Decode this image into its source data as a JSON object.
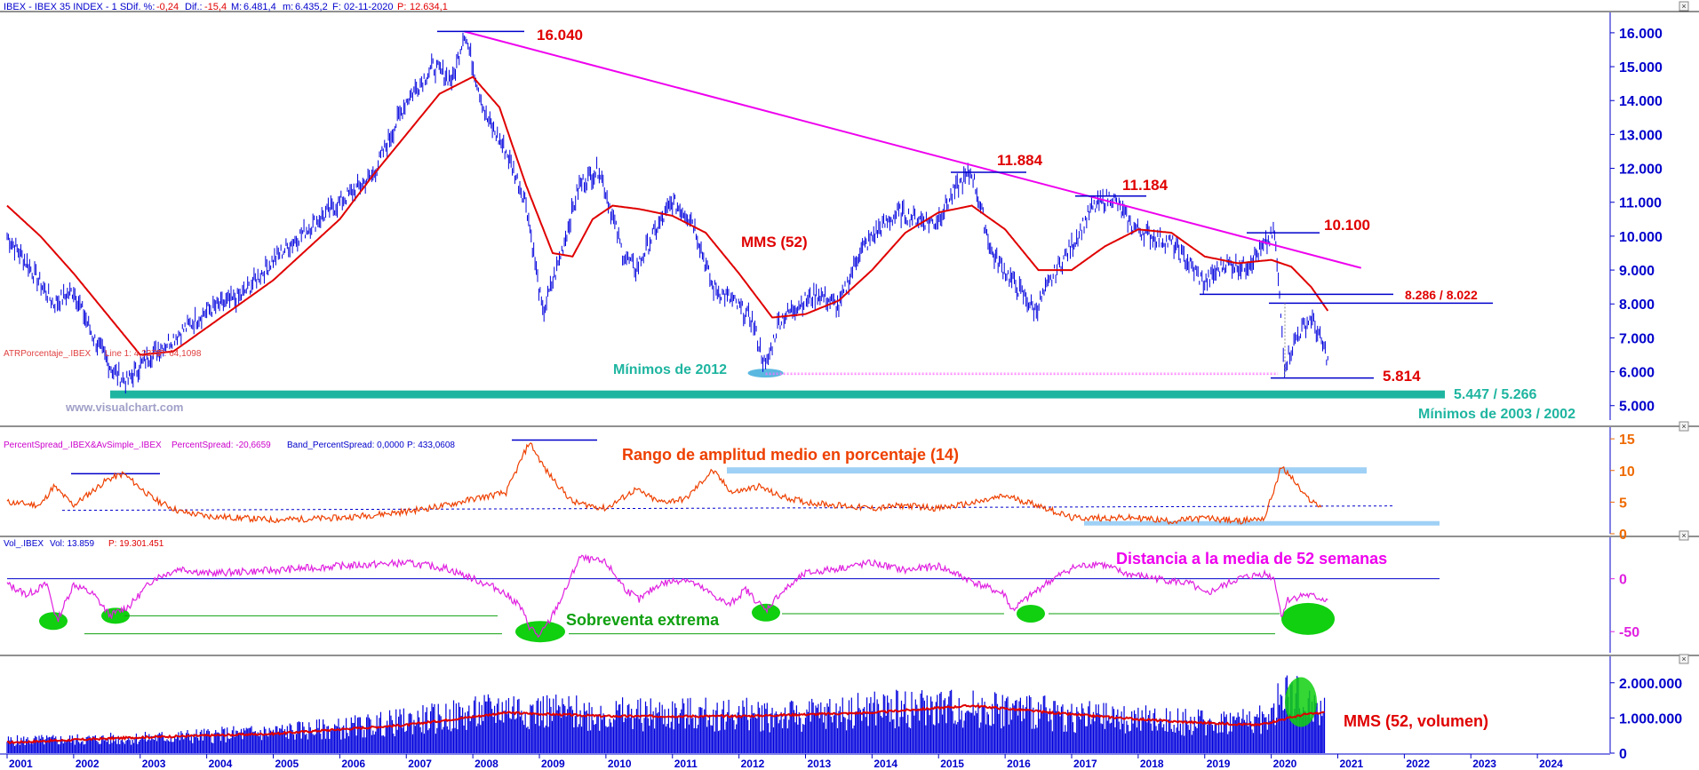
{
  "colors": {
    "price": "#0000dd",
    "mma": "#e00000",
    "trendline": "#ee00ee",
    "support": "#1eb5a0",
    "atr": "#ee4000",
    "atr_band": "#9fd0f5",
    "spread": "#e020e0",
    "oversold": "#10d010",
    "volume": "#0000dd",
    "axis_text": "#0000cc",
    "watermark": "#a0a0c8"
  },
  "headers": {
    "price": {
      "prefix": "IBEX - IBEX 35 INDEX - 1 S",
      "dif_pct_label": "Dif. %:",
      "dif_pct": "-0,24",
      "dif_label": "Dif.:",
      "dif": "-15,4",
      "max_label": "M:",
      "max": "6.481,4",
      "min_label": "m:",
      "min": "6.435,2",
      "date_label": "F:",
      "date": "02-11-2020",
      "p_label": "P:",
      "p": "12.634,1"
    },
    "atr": {
      "name": "ATRPorcentaje_.IBEX",
      "line": "Line 1: 4,2375",
      "p": "P: 64,1098"
    },
    "spread": {
      "name": "PercentSpread_.IBEX&AvSimple_.IBEX",
      "value": "PercentSpread: -20,6659",
      "band": "Band_PercentSpread: 0,0000",
      "p": "P: 433,0608"
    },
    "volume": {
      "name": "Vol_.IBEX",
      "vol": "Vol: 13.859",
      "p": "P: 19.301.451"
    }
  },
  "annotations": {
    "high_2007": "16.040",
    "high_2015": "11.884",
    "high_2017": "11.184",
    "high_2020": "10.100",
    "gap_2020": "8.286 / 8.022",
    "low_2020": "5.814",
    "low_2003": "5.447 / 5.266",
    "mins_2003": "Mínimos de 2003 / 2002",
    "mins_2012": "Mínimos de 2012",
    "mma_label": "MMS (52)",
    "watermark": "www.visualchart.com",
    "atr_title": "Rango de amplitud medio en porcentaje (14)",
    "spread_title": "Distancia a la media de 52 semanas",
    "oversold": "Sobreventa extrema",
    "vol_mma": "MMS (52, volumen)"
  },
  "chart_data": [
    {
      "type": "line",
      "title": "IBEX - IBEX 35 INDEX - 1 S",
      "x_unit": "year",
      "xlim": [
        2001,
        2025
      ],
      "ylim": [
        4600,
        16600
      ],
      "yticks": [
        5000,
        6000,
        7000,
        8000,
        9000,
        10000,
        11000,
        12000,
        13000,
        14000,
        15000,
        16000
      ],
      "ytick_labels": [
        "5.000",
        "6.000",
        "7.000",
        "8.000",
        "9.000",
        "10.000",
        "11.000",
        "12.000",
        "13.000",
        "14.000",
        "15.000",
        "16.000"
      ],
      "xtick_labels": [
        "2001",
        "2002",
        "2003",
        "2004",
        "2005",
        "2006",
        "2007",
        "2008",
        "2009",
        "2010",
        "2011",
        "2012",
        "2013",
        "2014",
        "2015",
        "2016",
        "2017",
        "2018",
        "2019",
        "2020",
        "2021",
        "2022",
        "2023",
        "2024"
      ],
      "series": [
        {
          "name": "IBEX",
          "x": [
            2001.0,
            2001.3,
            2001.7,
            2002.0,
            2002.3,
            2002.6,
            2002.8,
            2003.1,
            2003.5,
            2004.0,
            2004.5,
            2005.0,
            2005.5,
            2006.0,
            2006.5,
            2007.0,
            2007.4,
            2007.7,
            2007.87,
            2008.2,
            2008.5,
            2008.8,
            2009.05,
            2009.3,
            2009.6,
            2009.9,
            2010.25,
            2010.45,
            2010.7,
            2011.0,
            2011.3,
            2011.6,
            2011.9,
            2012.2,
            2012.4,
            2012.6,
            2012.9,
            2013.2,
            2013.5,
            2013.8,
            2014.1,
            2014.4,
            2014.7,
            2014.95,
            2015.3,
            2015.5,
            2015.8,
            2016.1,
            2016.45,
            2016.8,
            2017.0,
            2017.3,
            2017.6,
            2017.9,
            2018.2,
            2018.5,
            2018.8,
            2019.0,
            2019.3,
            2019.6,
            2019.9,
            2020.05,
            2020.2,
            2020.4,
            2020.6,
            2020.85
          ],
          "values": [
            10000,
            9200,
            8000,
            8400,
            7000,
            6000,
            5700,
            6400,
            7000,
            7800,
            8200,
            9300,
            10200,
            11000,
            11800,
            14000,
            15000,
            14600,
            16040,
            13500,
            12500,
            11000,
            7700,
            9300,
            11500,
            12000,
            9500,
            9000,
            10000,
            11000,
            10500,
            8500,
            8100,
            7500,
            6100,
            7500,
            8000,
            8300,
            7900,
            9500,
            10200,
            10700,
            10500,
            10400,
            11500,
            11884,
            9500,
            8700,
            7800,
            9100,
            9700,
            10800,
            11184,
            10300,
            10000,
            9800,
            9100,
            8600,
            9200,
            9100,
            9700,
            10100,
            6200,
            7100,
            7600,
            6400
          ]
        },
        {
          "name": "MMS (52)",
          "x": [
            2001.0,
            2001.5,
            2002.0,
            2002.5,
            2003.0,
            2003.5,
            2004.0,
            2004.5,
            2005.0,
            2005.5,
            2006.0,
            2006.5,
            2007.0,
            2007.5,
            2008.0,
            2008.4,
            2008.8,
            2009.2,
            2009.5,
            2009.8,
            2010.1,
            2010.5,
            2011.0,
            2011.5,
            2012.0,
            2012.5,
            2013.0,
            2013.5,
            2014.0,
            2014.5,
            2015.0,
            2015.5,
            2016.0,
            2016.5,
            2017.0,
            2017.5,
            2018.0,
            2018.5,
            2019.0,
            2019.5,
            2020.0,
            2020.3,
            2020.6,
            2020.85
          ],
          "values": [
            10900,
            10000,
            8900,
            7700,
            6500,
            6600,
            7300,
            8000,
            8700,
            9600,
            10500,
            11800,
            13000,
            14200,
            14700,
            13800,
            11500,
            9500,
            9400,
            10500,
            10900,
            10800,
            10600,
            10100,
            8900,
            7600,
            7700,
            8100,
            9000,
            10100,
            10700,
            10900,
            10200,
            9000,
            9000,
            9700,
            10200,
            10100,
            9400,
            9200,
            9300,
            9100,
            8500,
            7800
          ]
        }
      ],
      "levels": [
        {
          "label": "16.040",
          "value": 16040
        },
        {
          "label": "11.884",
          "value": 11884
        },
        {
          "label": "11.184",
          "value": 11184
        },
        {
          "label": "10.100",
          "value": 10100
        },
        {
          "label": "8.286 / 8.022",
          "values": [
            8286,
            8022
          ]
        },
        {
          "label": "5.814",
          "value": 5814
        },
        {
          "label": "5.447 / 5.266",
          "values": [
            5447,
            5266
          ]
        }
      ],
      "trendline": {
        "x": [
          2007.87,
          2020.95
        ],
        "values": [
          16040,
          8800
        ]
      }
    },
    {
      "type": "line",
      "title": "Rango de amplitud medio en porcentaje (14)",
      "ylim": [
        0,
        16
      ],
      "yticks": [
        0,
        5,
        10,
        15
      ],
      "series": [
        {
          "name": "ATRPorcentaje_.IBEX",
          "x": [
            2001.0,
            2001.5,
            2001.7,
            2002.0,
            2002.5,
            2002.75,
            2003.2,
            2003.6,
            2004.0,
            2005.0,
            2006.0,
            2007.0,
            2007.6,
            2008.0,
            2008.5,
            2008.85,
            2009.1,
            2009.5,
            2010.0,
            2010.45,
            2010.8,
            2011.2,
            2011.6,
            2011.9,
            2012.3,
            2012.6,
            2013.0,
            2013.5,
            2014.0,
            2014.5,
            2015.0,
            2015.6,
            2016.0,
            2016.5,
            2017.0,
            2018.0,
            2018.5,
            2019.0,
            2019.5,
            2019.9,
            2020.15,
            2020.3,
            2020.5,
            2020.75
          ],
          "values": [
            5,
            4.5,
            7.5,
            4.5,
            8.5,
            9.5,
            5.5,
            3.5,
            2.8,
            2.2,
            2.5,
            3.5,
            4.5,
            5.5,
            6.5,
            14.5,
            10,
            5,
            4,
            7,
            5,
            5.5,
            10,
            6.5,
            7.5,
            6,
            5,
            4.5,
            4,
            4.5,
            4,
            5,
            6,
            4.5,
            2.5,
            2.5,
            2,
            2.5,
            2,
            2.5,
            10.5,
            9,
            6,
            4.2
          ]
        }
      ]
    },
    {
      "type": "line",
      "title": "Distancia a la media de 52 semanas",
      "ylim": [
        -70,
        35
      ],
      "yticks": [
        0,
        -50
      ],
      "series": [
        {
          "name": "PercentSpread_.IBEX&AvSimple_.IBEX",
          "x": [
            2001.0,
            2001.3,
            2001.6,
            2001.75,
            2002.0,
            2002.3,
            2002.55,
            2002.85,
            2003.2,
            2003.6,
            2004.0,
            2005.0,
            2006.0,
            2007.0,
            2007.6,
            2008.0,
            2008.4,
            2008.7,
            2008.85,
            2009.0,
            2009.15,
            2009.4,
            2009.6,
            2010.0,
            2010.3,
            2010.5,
            2010.8,
            2011.2,
            2011.6,
            2011.85,
            2012.1,
            2012.4,
            2012.6,
            2013.0,
            2013.5,
            2014.0,
            2014.5,
            2015.0,
            2015.6,
            2016.0,
            2016.1,
            2016.3,
            2016.6,
            2017.0,
            2017.4,
            2017.8,
            2018.3,
            2018.8,
            2019.0,
            2019.5,
            2019.9,
            2020.05,
            2020.15,
            2020.25,
            2020.5,
            2020.85
          ],
          "values": [
            -5,
            -15,
            -5,
            -40,
            -5,
            -15,
            -35,
            -25,
            0,
            10,
            5,
            8,
            12,
            15,
            10,
            0,
            -10,
            -25,
            -45,
            -55,
            -40,
            -10,
            20,
            15,
            -10,
            -20,
            -5,
            0,
            -15,
            -25,
            -10,
            -30,
            -15,
            5,
            10,
            15,
            8,
            12,
            -5,
            -15,
            -30,
            -20,
            -5,
            10,
            15,
            5,
            0,
            -5,
            -15,
            0,
            5,
            0,
            -35,
            -20,
            -15,
            -20
          ]
        }
      ]
    },
    {
      "type": "bar",
      "title": "Vol_.IBEX",
      "ylim": [
        0,
        2600000
      ],
      "yticks": [
        0,
        1000000,
        2000000
      ],
      "ytick_labels": [
        "0",
        "1.000.000",
        "2.000.000"
      ],
      "series": [
        {
          "name": "Vol_.IBEX",
          "x": [
            2001.0,
            2002.0,
            2003.0,
            2004.0,
            2005.0,
            2006.0,
            2007.0,
            2008.0,
            2008.5,
            2009.0,
            2010.0,
            2011.0,
            2012.0,
            2013.0,
            2014.0,
            2015.0,
            2016.0,
            2017.0,
            2018.0,
            2019.0,
            2020.0,
            2020.2,
            2020.5,
            2020.8
          ],
          "values": [
            350000,
            380000,
            420000,
            500000,
            600000,
            700000,
            900000,
            1100000,
            1300000,
            1200000,
            1100000,
            1100000,
            1100000,
            1050000,
            1250000,
            1300000,
            1250000,
            1050000,
            950000,
            850000,
            1000000,
            1800000,
            1400000,
            1200000
          ]
        },
        {
          "name": "MMS (52, volumen)",
          "x": [
            2001.0,
            2003.0,
            2005.0,
            2007.0,
            2008.5,
            2010.0,
            2012.0,
            2014.0,
            2015.5,
            2017.0,
            2018.5,
            2019.8,
            2020.5,
            2020.8
          ],
          "values": [
            300000,
            450000,
            550000,
            800000,
            1150000,
            1050000,
            1050000,
            1150000,
            1350000,
            1100000,
            900000,
            800000,
            1100000,
            1150000
          ]
        }
      ]
    }
  ]
}
